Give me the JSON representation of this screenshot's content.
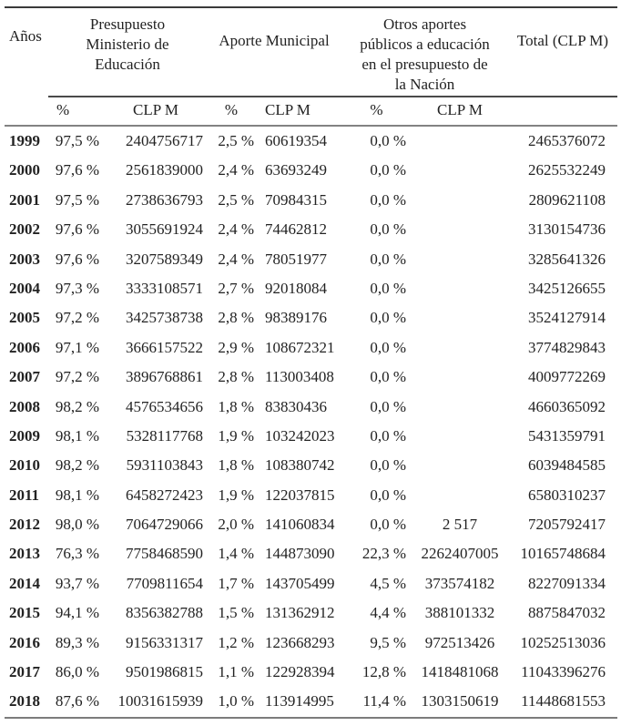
{
  "table": {
    "header": {
      "year_label": "Años",
      "group1_lines": [
        "Presupuesto",
        "Ministerio de",
        "Educación"
      ],
      "group2_label": "Aporte Municipal",
      "group3_lines": [
        "Otros aportes",
        "públicos a educación",
        "en el presupuesto de",
        "la Nación"
      ],
      "total_label": "Total (CLP M)",
      "pct_label": "%",
      "clp_label": "CLP M"
    },
    "rows": [
      {
        "year": "1999",
        "p1": "97,5 %",
        "c1": "2404756717",
        "p2": "2,5 %",
        "c2": "60619354",
        "p3": "0,0 %",
        "c3": "",
        "total": "2465376072"
      },
      {
        "year": "2000",
        "p1": "97,6 %",
        "c1": "2561839000",
        "p2": "2,4 %",
        "c2": "63693249",
        "p3": "0,0 %",
        "c3": "",
        "total": "2625532249"
      },
      {
        "year": "2001",
        "p1": "97,5 %",
        "c1": "2738636793",
        "p2": "2,5 %",
        "c2": "70984315",
        "p3": "0,0 %",
        "c3": "",
        "total": "2809621108"
      },
      {
        "year": "2002",
        "p1": "97,6 %",
        "c1": "3055691924",
        "p2": "2,4 %",
        "c2": "74462812",
        "p3": "0,0 %",
        "c3": "",
        "total": "3130154736"
      },
      {
        "year": "2003",
        "p1": "97,6 %",
        "c1": "3207589349",
        "p2": "2,4 %",
        "c2": "78051977",
        "p3": "0,0 %",
        "c3": "",
        "total": "3285641326"
      },
      {
        "year": "2004",
        "p1": "97,3 %",
        "c1": "3333108571",
        "p2": "2,7 %",
        "c2": "92018084",
        "p3": "0,0 %",
        "c3": "",
        "total": "3425126655"
      },
      {
        "year": "2005",
        "p1": "97,2 %",
        "c1": "3425738738",
        "p2": "2,8 %",
        "c2": "98389176",
        "p3": "0,0 %",
        "c3": "",
        "total": "3524127914"
      },
      {
        "year": "2006",
        "p1": "97,1 %",
        "c1": "3666157522",
        "p2": "2,9 %",
        "c2": "108672321",
        "p3": "0,0 %",
        "c3": "",
        "total": "3774829843"
      },
      {
        "year": "2007",
        "p1": "97,2 %",
        "c1": "3896768861",
        "p2": "2,8 %",
        "c2": "113003408",
        "p3": "0,0 %",
        "c3": "",
        "total": "4009772269"
      },
      {
        "year": "2008",
        "p1": "98,2 %",
        "c1": "4576534656",
        "p2": "1,8 %",
        "c2": "83830436",
        "p3": "0,0 %",
        "c3": "",
        "total": "4660365092"
      },
      {
        "year": "2009",
        "p1": "98,1 %",
        "c1": "5328117768",
        "p2": "1,9 %",
        "c2": "103242023",
        "p3": "0,0 %",
        "c3": "",
        "total": "5431359791"
      },
      {
        "year": "2010",
        "p1": "98,2 %",
        "c1": "5931103843",
        "p2": "1,8 %",
        "c2": "108380742",
        "p3": "0,0 %",
        "c3": "",
        "total": "6039484585"
      },
      {
        "year": "2011",
        "p1": "98,1 %",
        "c1": "6458272423",
        "p2": "1,9 %",
        "c2": "122037815",
        "p3": "0,0 %",
        "c3": "",
        "total": "6580310237"
      },
      {
        "year": "2012",
        "p1": "98,0 %",
        "c1": "7064729066",
        "p2": "2,0 %",
        "c2": "141060834",
        "p3": "0,0 %",
        "c3": "2 517",
        "total": "7205792417"
      },
      {
        "year": "2013",
        "p1": "76,3 %",
        "c1": "7758468590",
        "p2": "1,4 %",
        "c2": "144873090",
        "p3": "22,3 %",
        "c3": "2262407005",
        "total": "10165748684"
      },
      {
        "year": "2014",
        "p1": "93,7 %",
        "c1": "7709811654",
        "p2": "1,7 %",
        "c2": "143705499",
        "p3": "4,5 %",
        "c3": "373574182",
        "total": "8227091334"
      },
      {
        "year": "2015",
        "p1": "94,1 %",
        "c1": "8356382788",
        "p2": "1,5 %",
        "c2": "131362912",
        "p3": "4,4 %",
        "c3": "388101332",
        "total": "8875847032"
      },
      {
        "year": "2016",
        "p1": "89,3 %",
        "c1": "9156331317",
        "p2": "1,2 %",
        "c2": "123668293",
        "p3": "9,5 %",
        "c3": "972513426",
        "total": "10252513036"
      },
      {
        "year": "2017",
        "p1": "86,0 %",
        "c1": "9501986815",
        "p2": "1,1 %",
        "c2": "122928394",
        "p3": "12,8 %",
        "c3": "1418481068",
        "total": "11043396276"
      },
      {
        "year": "2018",
        "p1": "87,6 %",
        "c1": "10031615939",
        "p2": "1,0 %",
        "c2": "113914995",
        "p3": "11,4 %",
        "c3": "1303150619",
        "total": "11448681553"
      }
    ]
  },
  "colors": {
    "text": "#222222",
    "rule_dark": "#3a3a3a",
    "rule_gray": "#7c7c7c"
  }
}
